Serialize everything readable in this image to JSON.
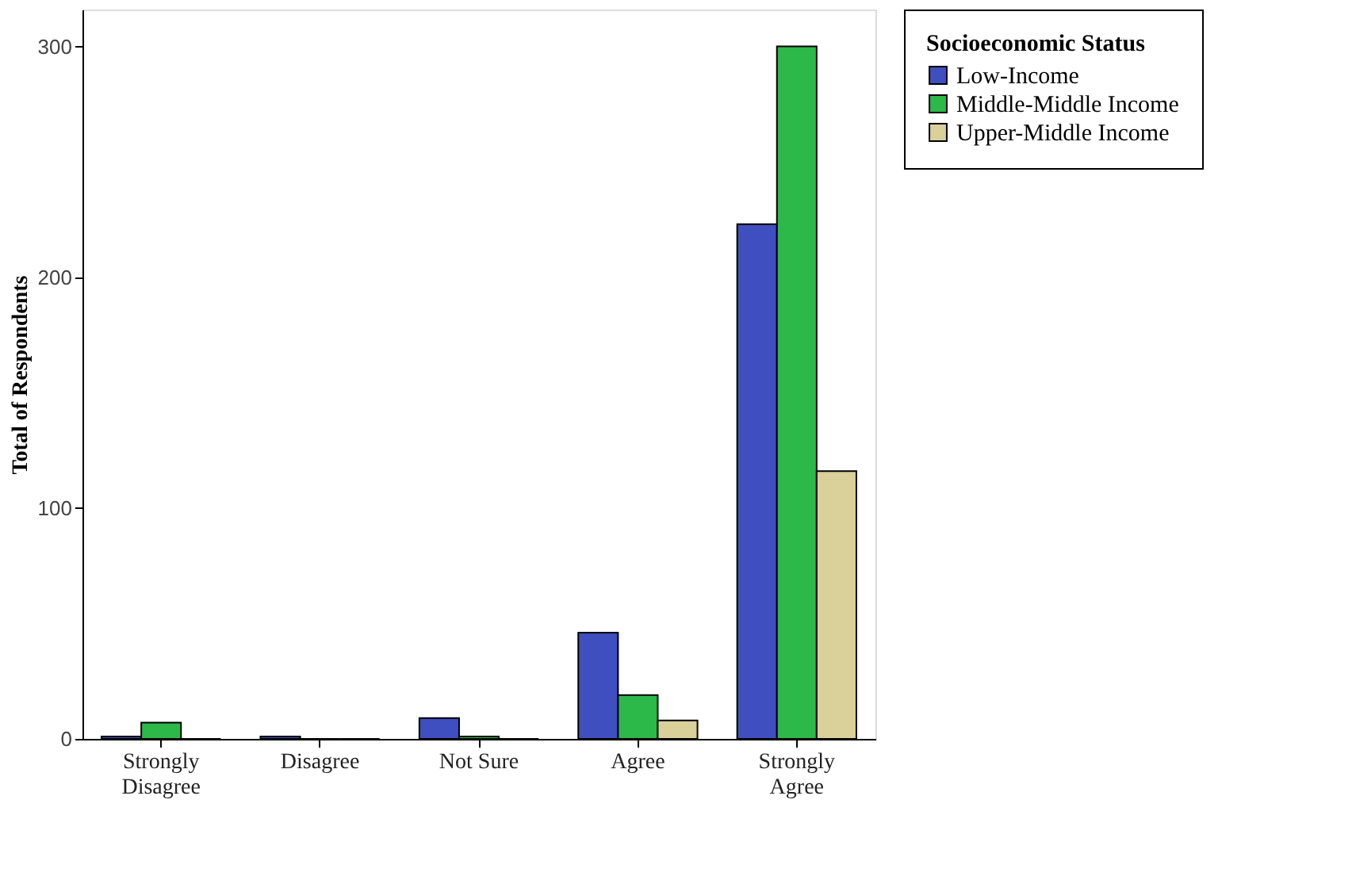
{
  "chart_data": {
    "type": "bar",
    "ylabel": "Total of Respondents",
    "legend_title": "Socioeconomic Status",
    "categories": [
      "Strongly\nDisagree",
      "Disagree",
      "Not Sure",
      "Agree",
      "Strongly\nAgree"
    ],
    "series": [
      {
        "name": "Low-Income",
        "color": "#3f4fbf",
        "values": [
          1,
          1,
          9,
          46,
          223
        ]
      },
      {
        "name": "Middle-Middle Income",
        "color": "#2db84a",
        "values": [
          7,
          0,
          1,
          19,
          300
        ]
      },
      {
        "name": "Upper-Middle Income",
        "color": "#d9d09a",
        "values": [
          0,
          0,
          0,
          8,
          116
        ]
      }
    ],
    "ylim": [
      0,
      316
    ],
    "yticks": [
      0,
      100,
      200,
      300
    ],
    "grid": false,
    "legend": "top right"
  }
}
